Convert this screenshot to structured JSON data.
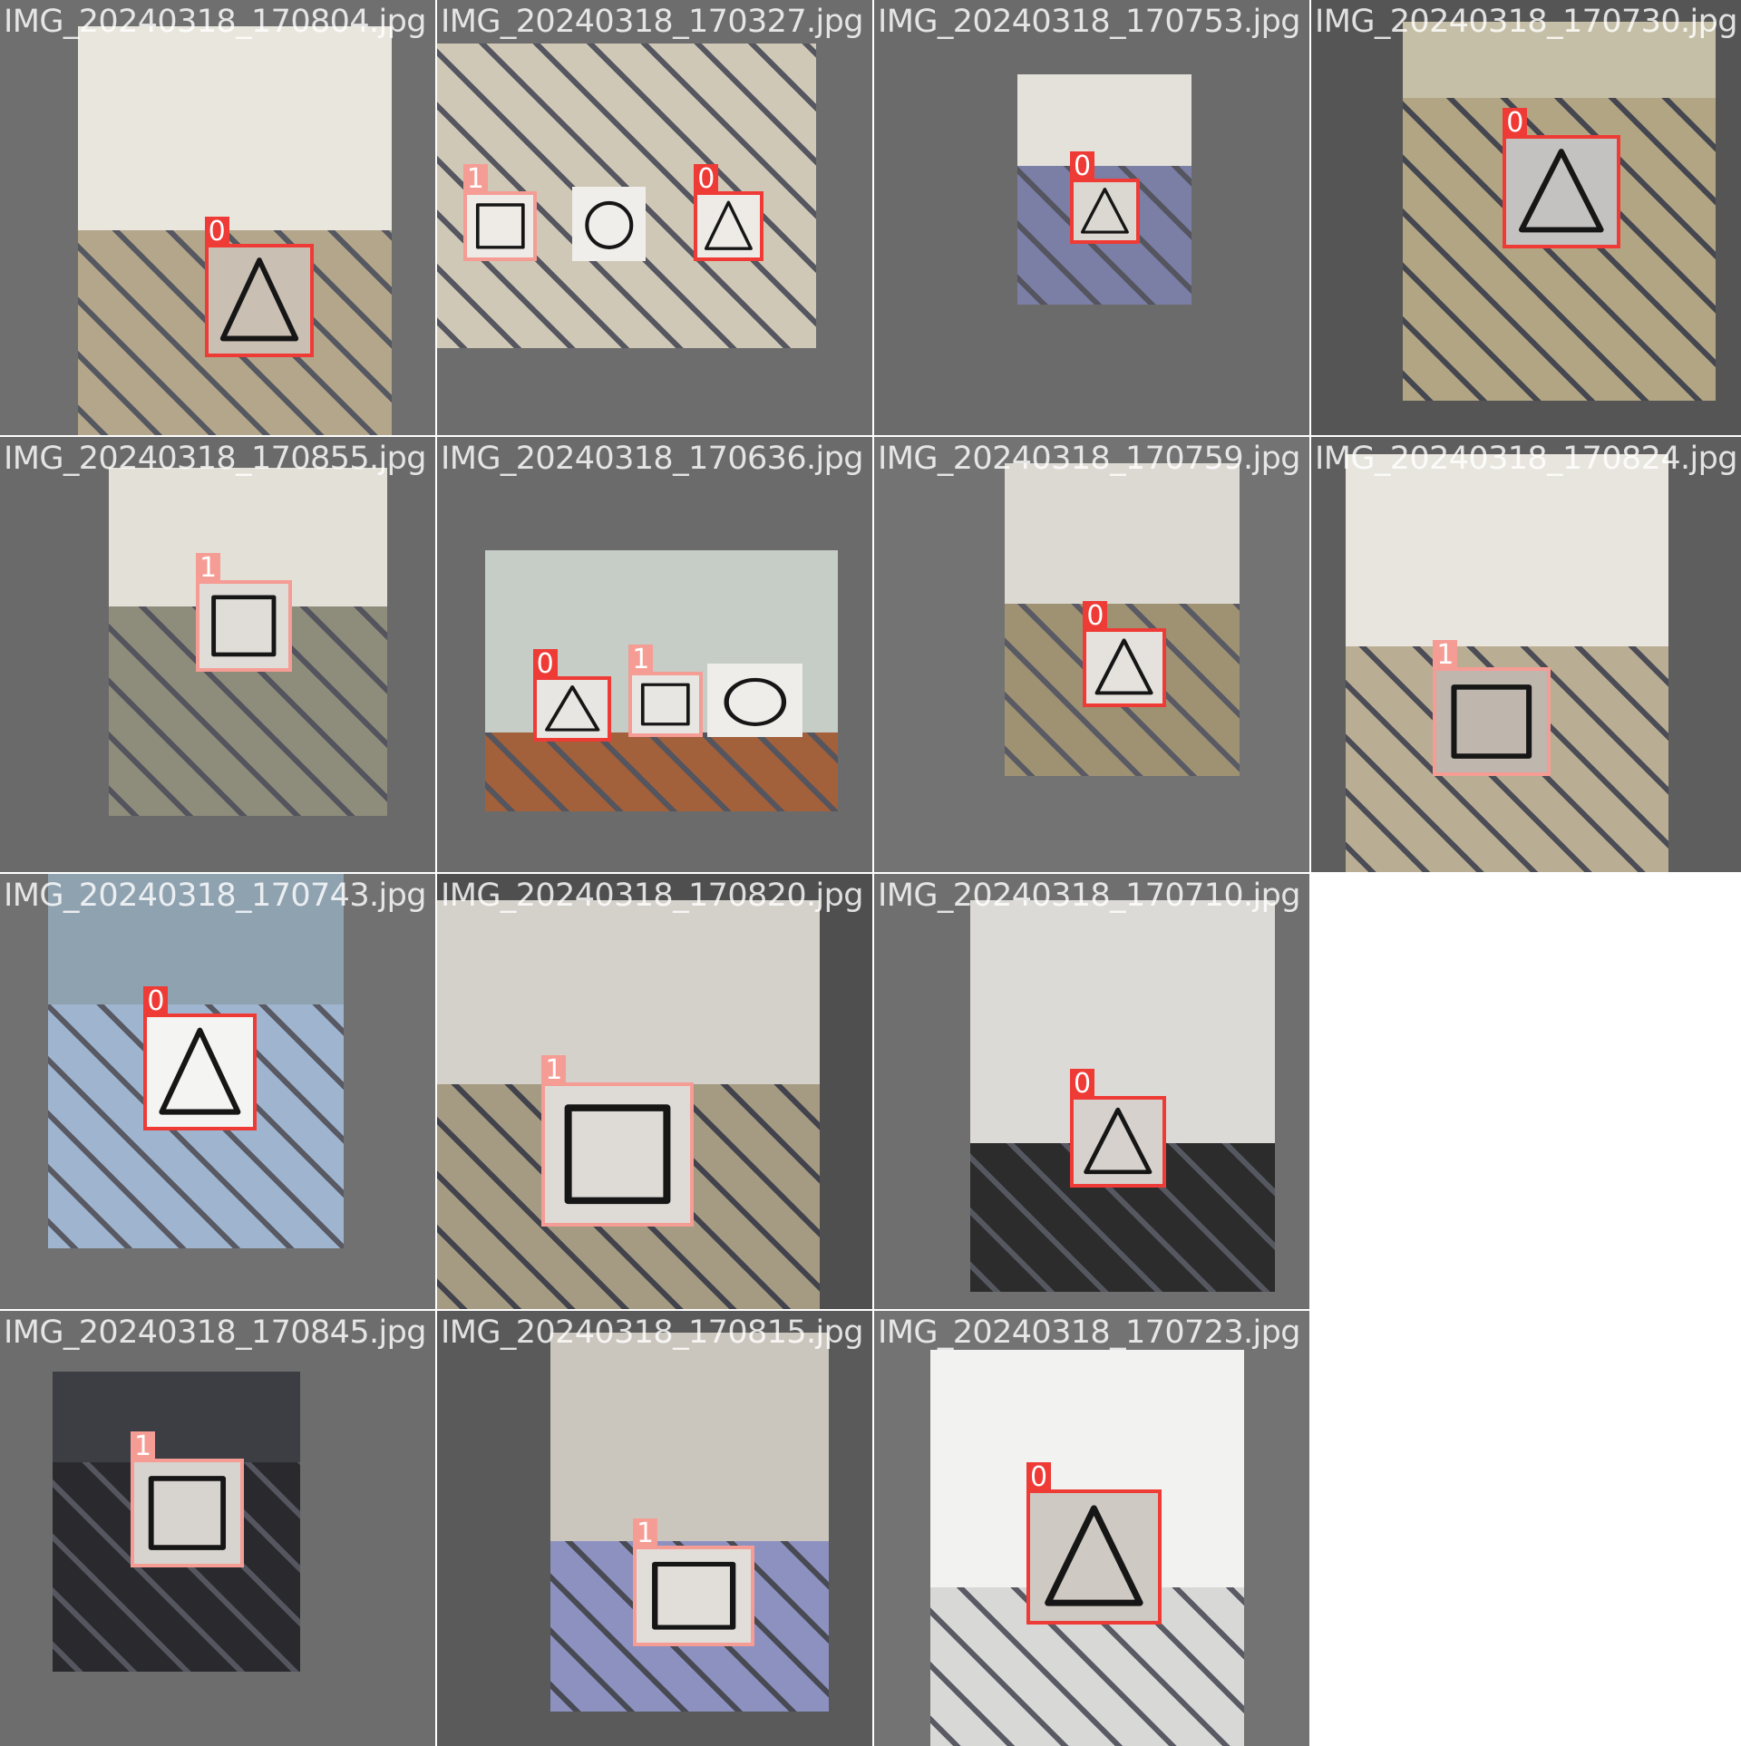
{
  "palette": {
    "class_0_box": "#ef3b36",
    "class_0_label": "#ef3b36",
    "class_1_box": "#f59c94",
    "class_1_label": "#f59c94"
  },
  "tiles": [
    {
      "filename": "IMG_20240318_170804.jpg",
      "bg": "#6f6f6f",
      "photo": {
        "l": 0.18,
        "t": 0.06,
        "r": 0.9,
        "b": 1.0
      },
      "wall": "#e9e6dd",
      "floor": "#b3a68a",
      "horizon": 0.5,
      "detections": [
        {
          "class": "0",
          "shape": "triangle",
          "l": 0.47,
          "t": 0.56,
          "r": 0.72,
          "b": 0.82,
          "face": "#c9bfb3"
        }
      ]
    },
    {
      "filename": "IMG_20240318_170327.jpg",
      "bg": "#6d6d6d",
      "photo": {
        "l": 0.0,
        "t": 0.1,
        "r": 0.87,
        "b": 0.8
      },
      "wall": "#cfc8b6",
      "floor": "#cfc8b6",
      "horizon": 0.0,
      "detections": [
        {
          "class": "1",
          "shape": "square",
          "l": 0.06,
          "t": 0.44,
          "r": 0.23,
          "b": 0.6,
          "face": "#eeebe6"
        },
        {
          "class": "0",
          "shape": "triangle",
          "l": 0.59,
          "t": 0.44,
          "r": 0.75,
          "b": 0.6,
          "face": "#eeebe6"
        }
      ],
      "extras": [
        {
          "shape": "circle",
          "l": 0.31,
          "t": 0.43,
          "r": 0.48,
          "b": 0.6,
          "face": "#f0eeea"
        }
      ]
    },
    {
      "filename": "IMG_20240318_170753.jpg",
      "bg": "#6b6b6b",
      "photo": {
        "l": 0.33,
        "t": 0.17,
        "r": 0.73,
        "b": 0.7
      },
      "wall": "#e4e1da",
      "floor": "#7b7fa6",
      "horizon": 0.4,
      "detections": [
        {
          "class": "0",
          "shape": "triangle",
          "l": 0.45,
          "t": 0.41,
          "r": 0.61,
          "b": 0.56,
          "face": "#dbd8d2"
        }
      ]
    },
    {
      "filename": "IMG_20240318_170730.jpg",
      "bg": "#555555",
      "photo": {
        "l": 0.21,
        "t": 0.05,
        "r": 0.93,
        "b": 0.92
      },
      "wall": "#c6bfa7",
      "floor": "#b2a583",
      "horizon": 0.2,
      "detections": [
        {
          "class": "0",
          "shape": "triangle",
          "l": 0.44,
          "t": 0.31,
          "r": 0.71,
          "b": 0.57,
          "face": "#c4c2c0"
        }
      ]
    },
    {
      "filename": "IMG_20240318_170855.jpg",
      "bg": "#6a6a6a",
      "photo": {
        "l": 0.25,
        "t": 0.07,
        "r": 0.89,
        "b": 0.87
      },
      "wall": "#e3e0d8",
      "floor": "#8e8c7a",
      "horizon": 0.4,
      "detections": [
        {
          "class": "1",
          "shape": "square",
          "l": 0.45,
          "t": 0.33,
          "r": 0.67,
          "b": 0.54,
          "face": "#e0ddd8"
        }
      ]
    },
    {
      "filename": "IMG_20240318_170636.jpg",
      "bg": "#6b6b6b",
      "photo": {
        "l": 0.11,
        "t": 0.26,
        "r": 0.92,
        "b": 0.86
      },
      "wall": "#c6ccc6",
      "floor": "#a2603b",
      "horizon": 0.7,
      "detections": [
        {
          "class": "0",
          "shape": "triangle",
          "l": 0.22,
          "t": 0.55,
          "r": 0.4,
          "b": 0.7,
          "face": "#e8e6e2"
        },
        {
          "class": "1",
          "shape": "square",
          "l": 0.44,
          "t": 0.54,
          "r": 0.61,
          "b": 0.69,
          "face": "#e8e6e2"
        }
      ],
      "extras": [
        {
          "shape": "circle",
          "l": 0.62,
          "t": 0.52,
          "r": 0.84,
          "b": 0.69,
          "face": "#efedea"
        }
      ]
    },
    {
      "filename": "IMG_20240318_170759.jpg",
      "bg": "#737373",
      "photo": {
        "l": 0.3,
        "t": 0.06,
        "r": 0.84,
        "b": 0.78
      },
      "wall": "#dcd9d2",
      "floor": "#9e9273",
      "horizon": 0.45,
      "detections": [
        {
          "class": "0",
          "shape": "triangle",
          "l": 0.48,
          "t": 0.44,
          "r": 0.67,
          "b": 0.62,
          "face": "#e5e2de"
        }
      ]
    },
    {
      "filename": "IMG_20240318_170824.jpg",
      "bg": "#5e5e5e",
      "photo": {
        "l": 0.08,
        "t": 0.04,
        "r": 0.82,
        "b": 1.0
      },
      "wall": "#e8e5de",
      "floor": "#b9ae93",
      "horizon": 0.46,
      "detections": [
        {
          "class": "1",
          "shape": "square",
          "l": 0.28,
          "t": 0.53,
          "r": 0.55,
          "b": 0.78,
          "face": "#bfb6ad"
        }
      ]
    },
    {
      "filename": "IMG_20240318_170743.jpg",
      "bg": "#717171",
      "photo": {
        "l": 0.11,
        "t": 0.0,
        "r": 0.79,
        "b": 0.86
      },
      "wall": "#8fa2b0",
      "floor": "#9fb4cf",
      "horizon": 0.35,
      "detections": [
        {
          "class": "0",
          "shape": "triangle",
          "l": 0.33,
          "t": 0.32,
          "r": 0.59,
          "b": 0.59,
          "face": "#f4f5f2"
        }
      ]
    },
    {
      "filename": "IMG_20240318_170820.jpg",
      "bg": "#4f4f4f",
      "photo": {
        "l": 0.0,
        "t": 0.06,
        "r": 0.88,
        "b": 1.0
      },
      "wall": "#d4d0ca",
      "floor": "#a59a82",
      "horizon": 0.45,
      "detections": [
        {
          "class": "1",
          "shape": "square",
          "l": 0.24,
          "t": 0.48,
          "r": 0.59,
          "b": 0.81,
          "face": "#dedad6"
        }
      ]
    },
    {
      "filename": "IMG_20240318_170710.jpg",
      "bg": "#6f6f6f",
      "photo": {
        "l": 0.22,
        "t": 0.06,
        "r": 0.92,
        "b": 0.96
      },
      "wall": "#dbdad6",
      "floor": "#2c2c2c",
      "horizon": 0.62,
      "detections": [
        {
          "class": "0",
          "shape": "triangle",
          "l": 0.45,
          "t": 0.51,
          "r": 0.67,
          "b": 0.72,
          "face": "#d6d1cc"
        }
      ]
    },
    {
      "filename": "IMG_20240318_170845.jpg",
      "bg": "#6d6d6d",
      "photo": {
        "l": 0.12,
        "t": 0.14,
        "r": 0.69,
        "b": 0.83
      },
      "wall": "#3d3e44",
      "floor": "#2a2a2e",
      "horizon": 0.3,
      "detections": [
        {
          "class": "1",
          "shape": "square",
          "l": 0.3,
          "t": 0.34,
          "r": 0.56,
          "b": 0.59,
          "face": "#d7d3cf"
        }
      ]
    },
    {
      "filename": "IMG_20240318_170815.jpg",
      "bg": "#5a5a5a",
      "photo": {
        "l": 0.26,
        "t": 0.05,
        "r": 0.9,
        "b": 0.92
      },
      "wall": "#cbc6bd",
      "floor": "#8c91c0",
      "horizon": 0.55,
      "detections": [
        {
          "class": "1",
          "shape": "square",
          "l": 0.45,
          "t": 0.54,
          "r": 0.73,
          "b": 0.77,
          "face": "#e1ded9"
        }
      ]
    },
    {
      "filename": "IMG_20240318_170723.jpg",
      "bg": "#737373",
      "photo": {
        "l": 0.13,
        "t": 0.09,
        "r": 0.85,
        "b": 1.0
      },
      "wall": "#f2f2f0",
      "floor": "#d8d8d6",
      "horizon": 0.6,
      "detections": [
        {
          "class": "0",
          "shape": "triangle",
          "l": 0.35,
          "t": 0.41,
          "r": 0.66,
          "b": 0.72,
          "face": "#cfc9c3"
        }
      ]
    }
  ]
}
